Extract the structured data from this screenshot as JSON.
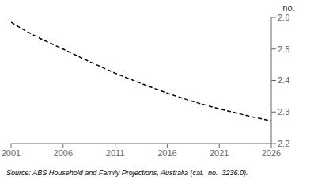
{
  "chart_data": {
    "type": "line",
    "ylabel": "no.",
    "source": "Source: ABS Household and Family Projections, Australia (cat.  no.  3236.0).",
    "x": [
      2001,
      2002,
      2003,
      2004,
      2005,
      2006,
      2007,
      2008,
      2009,
      2010,
      2011,
      2012,
      2013,
      2014,
      2015,
      2016,
      2017,
      2018,
      2019,
      2020,
      2021,
      2022,
      2023,
      2024,
      2025,
      2026
    ],
    "values": [
      2.585,
      2.565,
      2.547,
      2.53,
      2.515,
      2.5,
      2.484,
      2.468,
      2.453,
      2.438,
      2.423,
      2.41,
      2.397,
      2.384,
      2.372,
      2.36,
      2.349,
      2.338,
      2.328,
      2.319,
      2.31,
      2.302,
      2.294,
      2.286,
      2.279,
      2.272
    ],
    "xlim": [
      2001,
      2026
    ],
    "xticks": [
      2001,
      2006,
      2011,
      2016,
      2021,
      2026
    ],
    "ylim": [
      2.2,
      2.6
    ],
    "yticks": [
      2.2,
      2.3,
      2.4,
      2.5,
      2.6
    ],
    "color": "#000000",
    "line_style": "dashed",
    "grid": false
  }
}
